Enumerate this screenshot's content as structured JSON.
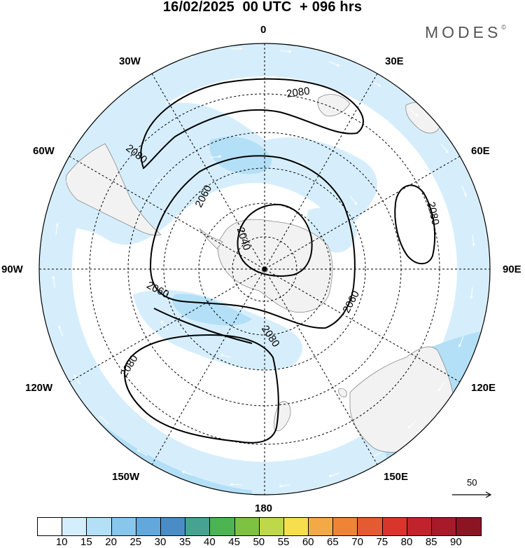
{
  "title": "16/02/2025  00 UTC  + 096 hrs",
  "brand": "MODES",
  "brand_mark": "©",
  "lon_labels": {
    "lon_0": "0",
    "lon_30e": "30E",
    "lon_60e": "60E",
    "lon_90e": "90E",
    "lon_120e": "120E",
    "lon_150e": "150E",
    "lon_180": "180",
    "lon_150w": "150W",
    "lon_120w": "120W",
    "lon_90w": "90W",
    "lon_60w": "60W",
    "lon_30w": "30W"
  },
  "contours": [
    {
      "value": "2080"
    },
    {
      "value": "2080"
    },
    {
      "value": "2060"
    },
    {
      "value": "2060"
    },
    {
      "value": "2060"
    },
    {
      "value": "2040"
    },
    {
      "value": "2080"
    },
    {
      "value": "2080"
    },
    {
      "value": "2080"
    }
  ],
  "reference_vector": "50",
  "colorbar": {
    "ticks": [
      "10",
      "15",
      "20",
      "25",
      "30",
      "35",
      "40",
      "45",
      "50",
      "55",
      "60",
      "65",
      "70",
      "75",
      "80",
      "85",
      "90"
    ],
    "colors": [
      "#ffffff",
      "#d4eefc",
      "#b3e0f7",
      "#89c6ec",
      "#62a8dd",
      "#4a8dc6",
      "#46a391",
      "#4cb451",
      "#7ec242",
      "#bfd84a",
      "#f7de4e",
      "#f4a947",
      "#ef8436",
      "#e45a31",
      "#d8352d",
      "#c0232a",
      "#a8192a",
      "#8c1524"
    ]
  },
  "colors": {
    "light_blue": "#cfe9fb",
    "mid_blue": "#a9d6f3",
    "land": "#f2f2f2",
    "coast": "#888888"
  },
  "icons": {
    "pole_marker": "pole-dot",
    "wind_arrows": "streamline-arrows"
  }
}
